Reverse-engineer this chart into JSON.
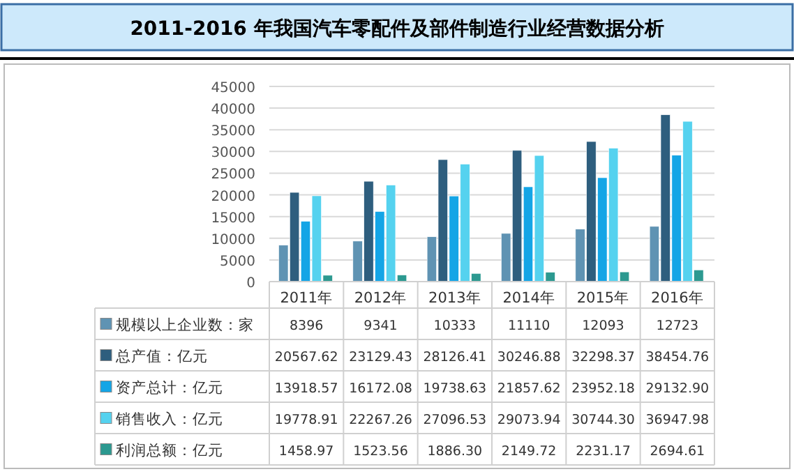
{
  "chart_data": {
    "type": "bar",
    "title": "2011-2016 年我国汽车零配件及部件制造行业经营数据分析",
    "categories": [
      "2011年",
      "2012年",
      "2013年",
      "2014年",
      "2015年",
      "2016年"
    ],
    "series": [
      {
        "name": "规模以上企业数：家",
        "color": "#5f93b3",
        "values": [
          8396,
          9341,
          10333,
          11110,
          12093,
          12723
        ],
        "value_labels": [
          "8396",
          "9341",
          "10333",
          "11110",
          "12093",
          "12723"
        ]
      },
      {
        "name": "总产值：亿元",
        "color": "#2e5e7e",
        "values": [
          20567.62,
          23129.43,
          28126.41,
          30246.88,
          32298.37,
          38454.76
        ],
        "value_labels": [
          "20567.62",
          "23129.43",
          "28126.41",
          "30246.88",
          "32298.37",
          "38454.76"
        ]
      },
      {
        "name": "资产总计：亿元",
        "color": "#14a5e6",
        "values": [
          13918.57,
          16172.08,
          19738.63,
          21857.62,
          23952.18,
          29132.9
        ],
        "value_labels": [
          "13918.57",
          "16172.08",
          "19738.63",
          "21857.62",
          "23952.18",
          "29132.90"
        ]
      },
      {
        "name": "销售收入：亿元",
        "color": "#55d2ef",
        "values": [
          19778.91,
          22267.26,
          27096.53,
          29073.94,
          30744.3,
          36947.98
        ],
        "value_labels": [
          "19778.91",
          "22267.26",
          "27096.53",
          "29073.94",
          "30744.30",
          "36947.98"
        ]
      },
      {
        "name": "利润总额：亿元",
        "color": "#2c9990",
        "values": [
          1458.97,
          1523.56,
          1886.3,
          2149.72,
          2231.17,
          2694.61
        ],
        "value_labels": [
          "1458.97",
          "1523.56",
          "1886.30",
          "2149.72",
          "2231.17",
          "2694.61"
        ]
      }
    ],
    "ylim": [
      0,
      45000
    ],
    "yticks": [
      0,
      5000,
      10000,
      15000,
      20000,
      25000,
      30000,
      35000,
      40000,
      45000
    ],
    "grid": "y",
    "legend": "bottom"
  }
}
